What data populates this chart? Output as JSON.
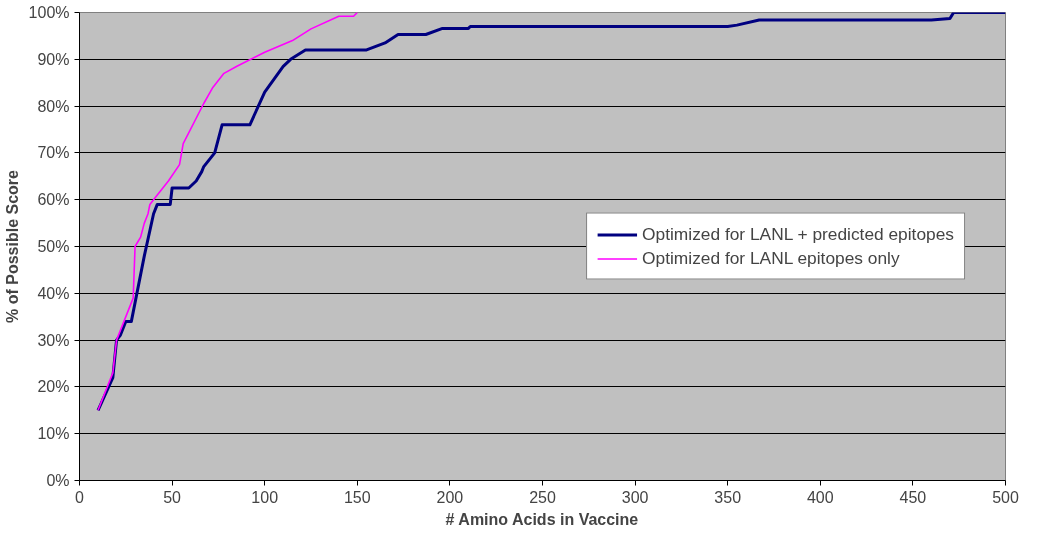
{
  "chart_data": {
    "type": "line",
    "xlabel": "# Amino Acids in Vaccine",
    "ylabel": "% of Possible Score",
    "xlim": [
      0,
      500
    ],
    "xticks": [
      0,
      50,
      100,
      150,
      200,
      250,
      300,
      350,
      400,
      450,
      500
    ],
    "ylim": [
      0,
      100
    ],
    "yticks": [
      {
        "value": 0,
        "label": "0%"
      },
      {
        "value": 10,
        "label": "10%"
      },
      {
        "value": 20,
        "label": "20%"
      },
      {
        "value": 30,
        "label": "30%"
      },
      {
        "value": 40,
        "label": "40%"
      },
      {
        "value": 50,
        "label": "50%"
      },
      {
        "value": 60,
        "label": "60%"
      },
      {
        "value": 70,
        "label": "70%"
      },
      {
        "value": 80,
        "label": "80%"
      },
      {
        "value": 90,
        "label": "90%"
      },
      {
        "value": 100,
        "label": "100%"
      }
    ],
    "grid": "y",
    "legend": "right",
    "marker": "none",
    "line_style": "solid",
    "series": [
      {
        "name": "Optimized for LANL + predicted epitopes",
        "color": "#000080",
        "x": [
          10,
          18,
          20,
          22,
          25,
          28,
          35,
          40,
          42,
          49,
          50,
          59,
          63,
          66,
          67,
          73,
          77,
          92,
          100,
          110,
          114,
          122,
          155,
          165,
          172,
          187,
          196,
          210,
          211,
          350,
          355,
          367,
          460,
          470,
          472,
          500
        ],
        "values": [
          15,
          22,
          30,
          31,
          34,
          34,
          48,
          57,
          59,
          59,
          62.5,
          62.5,
          64,
          66,
          67,
          70,
          76,
          76,
          83,
          88.5,
          90,
          92,
          92,
          93.5,
          95.3,
          95.3,
          96.6,
          96.6,
          97,
          97,
          97.3,
          98.4,
          98.4,
          98.7,
          100,
          100
        ]
      },
      {
        "name": "Optimized for LANL epitopes only",
        "color": "#ff00ff",
        "x": [
          10,
          18,
          20,
          27,
          29,
          30,
          33,
          35,
          37,
          38,
          42,
          48,
          54,
          56,
          67,
          72,
          78,
          85,
          100,
          115,
          125,
          140,
          148,
          150
        ],
        "values": [
          15,
          23,
          30,
          37,
          39,
          50,
          52,
          55,
          57,
          59,
          61,
          64,
          67.5,
          72,
          80.5,
          84,
          87,
          88.5,
          91.5,
          94,
          96.5,
          99.2,
          99.2,
          100
        ]
      }
    ]
  }
}
